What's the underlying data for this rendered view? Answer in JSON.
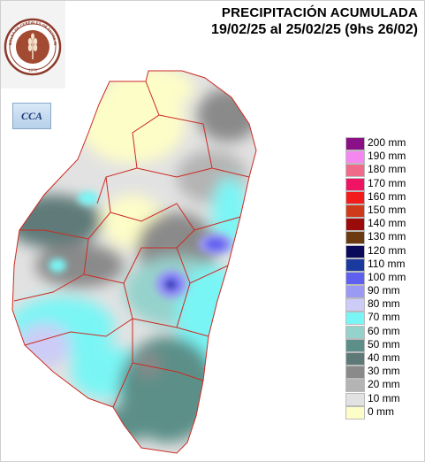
{
  "header": {
    "title": "PRECIPITACIÓN ACUMULADA",
    "subtitle": "19/02/25 al 25/02/25 (9hs 26/02)"
  },
  "logo": {
    "ring_text": "BOLSA DE CEREALES DE ENTRE RIOS",
    "year": "1978",
    "icon": "wheat-emblem-icon"
  },
  "badge": {
    "text": "CCA"
  },
  "colors": {
    "province_border": "#cc2a22",
    "background": "#ffffff"
  },
  "legend": [
    {
      "label": "200 mm",
      "color": "#8b0f87"
    },
    {
      "label": "190 mm",
      "color": "#f488f0"
    },
    {
      "label": "180 mm",
      "color": "#f06a8a"
    },
    {
      "label": "170 mm",
      "color": "#ef1463"
    },
    {
      "label": "160 mm",
      "color": "#f21c1c"
    },
    {
      "label": "150 mm",
      "color": "#ce3a1a"
    },
    {
      "label": "140 mm",
      "color": "#9c0b0b"
    },
    {
      "label": "130 mm",
      "color": "#6b3a10"
    },
    {
      "label": "120 mm",
      "color": "#0a0a5a"
    },
    {
      "label": "110 mm",
      "color": "#1a3aa0"
    },
    {
      "label": "100 mm",
      "color": "#6060f0"
    },
    {
      "label": "90 mm",
      "color": "#9a9af4"
    },
    {
      "label": "80 mm",
      "color": "#ccccf6"
    },
    {
      "label": "70 mm",
      "color": "#7af5f5"
    },
    {
      "label": "60 mm",
      "color": "#96d2cc"
    },
    {
      "label": "50 mm",
      "color": "#5b8f88"
    },
    {
      "label": "40 mm",
      "color": "#5e7a78"
    },
    {
      "label": "30 mm",
      "color": "#8a8a8a"
    },
    {
      "label": "20 mm",
      "color": "#b4b4b4"
    },
    {
      "label": "10 mm",
      "color": "#e2e2e2"
    },
    {
      "label": "0 mm",
      "color": "#fdfdc8"
    }
  ]
}
